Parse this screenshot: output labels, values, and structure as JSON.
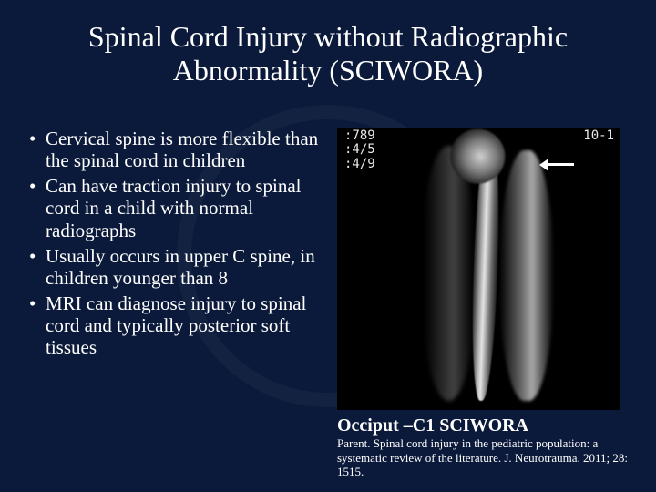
{
  "title": "Spinal Cord Injury without Radiographic Abnormality (SCIWORA)",
  "bullets": [
    "Cervical spine is more flexible than the spinal cord in children",
    "Can have traction injury to spinal cord in a child with normal radiographs",
    "Usually occurs in upper C spine, in children younger than 8",
    "MRI can diagnose injury to spinal cord and typically posterior soft tissues"
  ],
  "scan": {
    "overlay_top_left": ":789\n:4/5\n:4/9",
    "overlay_top_right": "10-1"
  },
  "caption": "Occiput –C1 SCIWORA",
  "citation": "Parent. Spinal cord injury in the pediatric population: a systematic review of the literature. J. Neurotrauma. 2011; 28: 1515.",
  "colors": {
    "background": "#0b1a3a",
    "text": "#ffffff",
    "image_bg": "#000000"
  }
}
